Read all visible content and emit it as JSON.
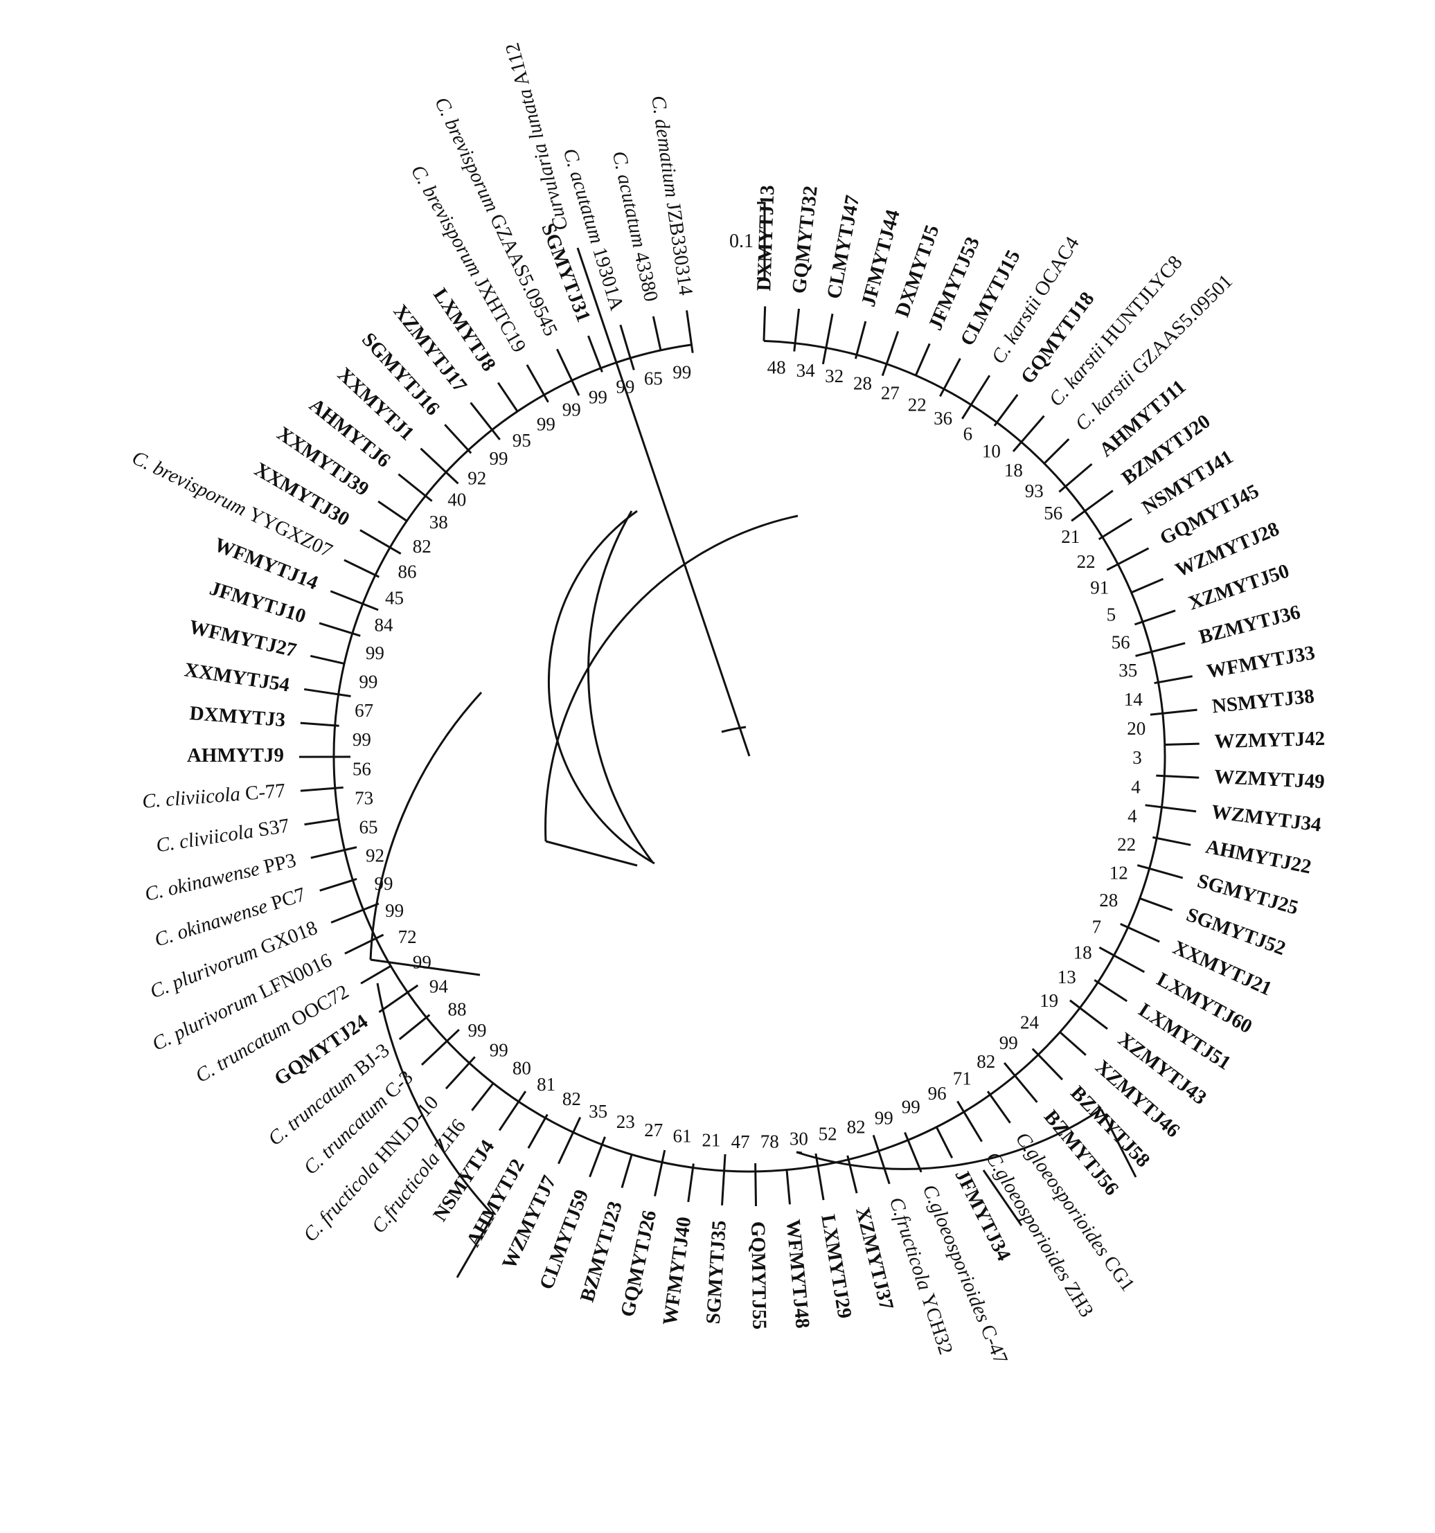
{
  "scale_bar": {
    "label": "0.1"
  },
  "outgroup": {
    "species": "Curvularia lunata",
    "strain": "A112"
  },
  "taxa": [
    {
      "id": "DXMYTJ13",
      "bold": true
    },
    {
      "id": "GQMYTJ32",
      "bold": true
    },
    {
      "id": "CLMYTJ47",
      "bold": true
    },
    {
      "id": "JFMYTJ44",
      "bold": true
    },
    {
      "id": "DXMYTJ5",
      "bold": true
    },
    {
      "id": "JFMYTJ53",
      "bold": true
    },
    {
      "id": "CLMYTJ15",
      "bold": true
    },
    {
      "sp": "C. karstii",
      "strain": "OCAC4"
    },
    {
      "id": "GQMYTJ18",
      "bold": true
    },
    {
      "sp": "C. karstii",
      "strain": "HUNTJLYC8"
    },
    {
      "sp": "C. karstii",
      "strain": "GZAAS5.09501"
    },
    {
      "id": "AHMYTJ11",
      "bold": true
    },
    {
      "id": "BZMYTJ20",
      "bold": true
    },
    {
      "id": "NSMYTJ41",
      "bold": true
    },
    {
      "id": "GQMYTJ45",
      "bold": true
    },
    {
      "id": "WZMYTJ28",
      "bold": true
    },
    {
      "id": "XZMYTJ50",
      "bold": true
    },
    {
      "id": "BZMYTJ36",
      "bold": true
    },
    {
      "id": "WFMYTJ33",
      "bold": true
    },
    {
      "id": "NSMYTJ38",
      "bold": true
    },
    {
      "id": "WZMYTJ42",
      "bold": true
    },
    {
      "id": "WZMYTJ49",
      "bold": true
    },
    {
      "id": "WZMYTJ34",
      "bold": true
    },
    {
      "id": "AHMYTJ22",
      "bold": true
    },
    {
      "id": "SGMYTJ25",
      "bold": true
    },
    {
      "id": "SGMYTJ52",
      "bold": true
    },
    {
      "id": "XXMYTJ21",
      "bold": true
    },
    {
      "id": "LXMYTJ60",
      "bold": true
    },
    {
      "id": "LXMYTJ51",
      "bold": true
    },
    {
      "id": "XZMYTJ43",
      "bold": true
    },
    {
      "id": "XZMYTJ46",
      "bold": true
    },
    {
      "id": "BZMYTJ58",
      "bold": true
    },
    {
      "id": "BZMYTJ56",
      "bold": true
    },
    {
      "sp": "C.gloeosporioides",
      "strain": "CG1"
    },
    {
      "sp": "C.gloeosporioides",
      "strain": "ZH3"
    },
    {
      "id": "JFMYTJ34",
      "bold": true
    },
    {
      "sp": "C.gloeosporioides",
      "strain": "C-47"
    },
    {
      "sp": "C.fructicola",
      "strain": "YCH32"
    },
    {
      "id": "XZMYTJ37",
      "bold": true
    },
    {
      "id": "LXMYTJ29",
      "bold": true
    },
    {
      "id": "WFMYTJ48",
      "bold": true
    },
    {
      "id": "GQMYTJ55",
      "bold": true
    },
    {
      "id": "SGMYTJ35",
      "bold": true
    },
    {
      "id": "WFMYTJ40",
      "bold": true
    },
    {
      "id": "GQMYTJ26",
      "bold": true
    },
    {
      "id": "BZMYTJ23",
      "bold": true
    },
    {
      "id": "CLMYTJ59",
      "bold": true
    },
    {
      "id": "WZMYTJ7",
      "bold": true
    },
    {
      "id": "AHMYTJ2",
      "bold": true
    },
    {
      "id": "NSMYTJ4",
      "bold": true
    },
    {
      "sp": "C.fructicola",
      "strain": "ZH6"
    },
    {
      "sp": "C. fructicola",
      "strain": "HNLD-10"
    },
    {
      "sp": "C. truncatum",
      "strain": "C-3"
    },
    {
      "sp": "C. truncatum",
      "strain": "BJ-3"
    },
    {
      "id": "GQMYTJ24",
      "bold": true
    },
    {
      "sp": "C. truncatum",
      "strain": "OOC72"
    },
    {
      "sp": "C. plurivorum",
      "strain": "LFN0016"
    },
    {
      "sp": "C. plurivorum",
      "strain": "GX018"
    },
    {
      "sp": "C. okinawense",
      "strain": "PC7"
    },
    {
      "sp": "C. okinawense",
      "strain": "PP3"
    },
    {
      "sp": "C. cliviicola",
      "strain": "S37"
    },
    {
      "sp": "C. cliviicola",
      "strain": "C-77"
    },
    {
      "id": "AHMYTJ9",
      "bold": true
    },
    {
      "id": "DXMYTJ3",
      "bold": true
    },
    {
      "id": "XXMYTJ54",
      "bold": true
    },
    {
      "id": "WFMYTJ27",
      "bold": true
    },
    {
      "id": "JFMYTJ10",
      "bold": true
    },
    {
      "id": "WFMYTJ14",
      "bold": true
    },
    {
      "sp": "C. brevisporum",
      "strain": "YYGXZ07"
    },
    {
      "id": "XXMYTJ30",
      "bold": true
    },
    {
      "id": "XXMYTJ39",
      "bold": true
    },
    {
      "id": "AHMYTJ6",
      "bold": true
    },
    {
      "id": "XXMYTJ1",
      "bold": true
    },
    {
      "id": "SGMYTJ16",
      "bold": true
    },
    {
      "id": "XZMYTJ17",
      "bold": true
    },
    {
      "id": "LXMYTJ8",
      "bold": true
    },
    {
      "sp": "C. brevisporum",
      "strain": "JXHTC19"
    },
    {
      "sp": "C. brevisporum",
      "strain": "GZAAS5.09545"
    },
    {
      "id": "SGMYTJ31",
      "bold": true
    },
    {
      "sp": "C. acutatum",
      "strain": "19301A"
    },
    {
      "sp": "C. acutatum",
      "strain": "43380"
    },
    {
      "sp": "C. dematium",
      "strain": "JZB330314"
    }
  ],
  "bootstrap": [
    "48",
    "34",
    "32",
    "28",
    "27",
    "22",
    "36",
    "6",
    "10",
    "18",
    "93",
    "56",
    "21",
    "22",
    "91",
    "5",
    "56",
    "35",
    "14",
    "20",
    "3",
    "4",
    "4",
    "22",
    "12",
    "28",
    "7",
    "18",
    "13",
    "19",
    "24",
    "99",
    "82",
    "71",
    "96",
    "99",
    "99",
    "82",
    "52",
    "30",
    "78",
    "47",
    "21",
    "61",
    "27",
    "23",
    "35",
    "82",
    "81",
    "80",
    "99",
    "99",
    "88",
    "94",
    "99",
    "72",
    "99",
    "99",
    "92",
    "65",
    "73",
    "56",
    "99",
    "67",
    "99",
    "99",
    "84",
    "45",
    "86",
    "82",
    "38",
    "40",
    "92",
    "99",
    "95",
    "99",
    "99",
    "99",
    "99",
    "65",
    "99"
  ]
}
